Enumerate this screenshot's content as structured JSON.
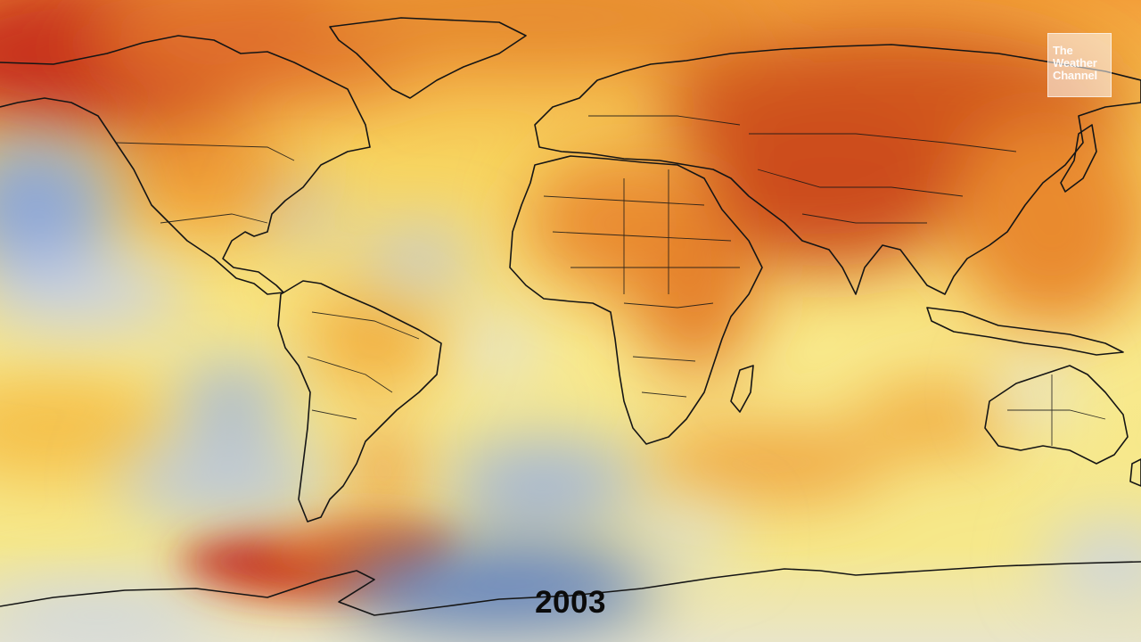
{
  "map": {
    "year": "2003",
    "colors": {
      "warm_strong": "#b8231a",
      "warm": "#dc6a1f",
      "warm_light": "#f2a43a",
      "neutral": "#f6e27a",
      "cool_light": "#dfe3ee",
      "cool": "#8ea6d6",
      "cool_strong": "#5d7fbf",
      "coastline": "#141414"
    }
  },
  "logo": {
    "line1": "The",
    "line2": "Weather",
    "line3": "Channel"
  }
}
